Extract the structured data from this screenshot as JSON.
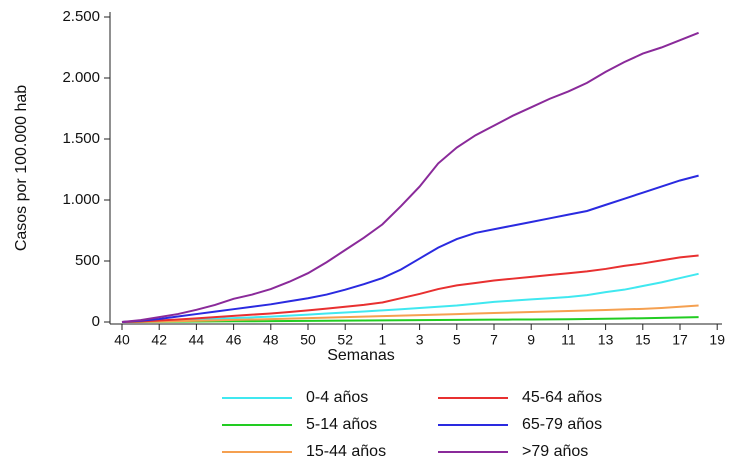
{
  "chart_data": {
    "type": "line",
    "x_label": "Semanas",
    "y_label": "Casos por 100.000 hab",
    "categories": [
      "40",
      null,
      "42",
      null,
      "44",
      null,
      "46",
      null,
      "48",
      null,
      "50",
      null,
      "52",
      null,
      "1",
      null,
      "3",
      null,
      "5",
      null,
      "7",
      null,
      "9",
      null,
      "11",
      null,
      "13",
      null,
      "15",
      null,
      "17",
      null,
      "19"
    ],
    "series": [
      {
        "name": "0-4 años",
        "color": "#40e8f0",
        "values": [
          0,
          3,
          8,
          14,
          20,
          26,
          32,
          38,
          44,
          52,
          60,
          70,
          78,
          86,
          95,
          105,
          115,
          125,
          135,
          150,
          165,
          175,
          185,
          195,
          205,
          220,
          245,
          265,
          295,
          325,
          360,
          395,
          null
        ]
      },
      {
        "name": "5-14 años",
        "color": "#22cc22",
        "values": [
          0,
          1,
          2,
          3,
          4,
          5,
          6,
          6,
          7,
          8,
          9,
          10,
          11,
          12,
          13,
          14,
          15,
          16,
          17,
          18,
          19,
          20,
          21,
          22,
          23,
          25,
          27,
          29,
          31,
          34,
          37,
          40,
          null
        ]
      },
      {
        "name": "15-44 años",
        "color": "#f5a050",
        "values": [
          0,
          2,
          4,
          7,
          10,
          13,
          17,
          20,
          24,
          28,
          32,
          36,
          40,
          44,
          48,
          52,
          56,
          60,
          65,
          70,
          74,
          78,
          82,
          86,
          90,
          94,
          98,
          103,
          108,
          115,
          125,
          135,
          null
        ]
      },
      {
        "name": "45-64 años",
        "color": "#e83030",
        "values": [
          0,
          5,
          12,
          20,
          30,
          40,
          50,
          60,
          70,
          82,
          95,
          110,
          125,
          140,
          160,
          195,
          230,
          270,
          300,
          320,
          340,
          355,
          370,
          385,
          400,
          415,
          435,
          460,
          480,
          505,
          530,
          545,
          null
        ]
      },
      {
        "name": "65-79 años",
        "color": "#2a2ae0",
        "values": [
          0,
          10,
          25,
          45,
          65,
          85,
          105,
          125,
          145,
          170,
          195,
          225,
          265,
          310,
          360,
          430,
          520,
          610,
          680,
          730,
          760,
          790,
          820,
          850,
          880,
          910,
          960,
          1010,
          1060,
          1110,
          1160,
          1200,
          null
        ]
      },
      {
        "name": ">79 años",
        "color": "#8a2a9a",
        "values": [
          0,
          15,
          40,
          65,
          100,
          140,
          190,
          225,
          270,
          330,
          400,
          490,
          590,
          690,
          800,
          950,
          1110,
          1300,
          1430,
          1530,
          1610,
          1690,
          1760,
          1830,
          1890,
          1960,
          2050,
          2130,
          2200,
          2250,
          2310,
          2370,
          null
        ]
      }
    ],
    "ylim": [
      0,
      2500
    ],
    "yticks": [
      0,
      500,
      {
        "value": 1000,
        "label": "1.000"
      },
      {
        "value": 1500,
        "label": "1.500"
      },
      {
        "value": 2000,
        "label": "2.000"
      },
      {
        "value": 2500,
        "label": "2.500"
      }
    ]
  }
}
